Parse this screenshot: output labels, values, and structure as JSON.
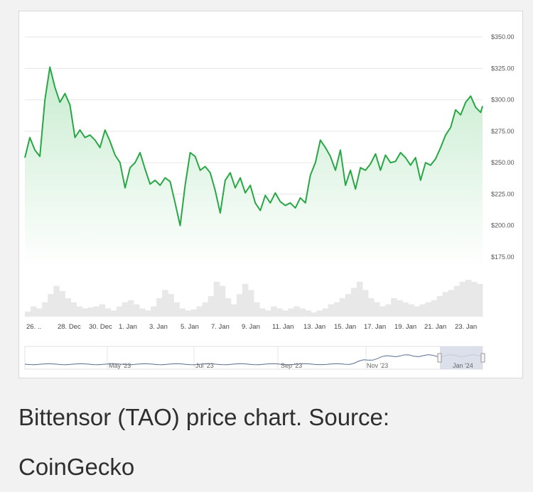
{
  "chart_data": {
    "type": "area",
    "ylim": [
      175,
      350
    ],
    "y_ticks": [
      "$350.00",
      "$325.00",
      "$300.00",
      "$275.00",
      "$250.00",
      "$225.00",
      "$200.00",
      "$175.00"
    ],
    "y_tick_values": [
      350,
      325,
      300,
      275,
      250,
      225,
      200,
      175
    ],
    "x_tick_labels": [
      "26. ..",
      "28. Dec",
      "30. Dec",
      "1. Jan",
      "3. Jan",
      "5. Jan",
      "7. Jan",
      "9. Jan",
      "11. Jan",
      "13. Jan",
      "15. Jan",
      "17. Jan",
      "19. Jan",
      "21. Jan",
      "23. Jan"
    ],
    "series": [
      {
        "x": [
          "2023-12-25 12:00",
          "2023-12-25 20:00",
          "2023-12-26 04:00",
          "2023-12-26 12:00",
          "2023-12-26 20:00",
          "2023-12-27 04:00",
          "2023-12-27 12:00",
          "2023-12-27 20:00",
          "2023-12-28 04:00",
          "2023-12-28 12:00",
          "2023-12-28 20:00",
          "2023-12-29 04:00",
          "2023-12-29 12:00",
          "2023-12-29 20:00",
          "2023-12-30 04:00",
          "2023-12-30 12:00",
          "2023-12-30 20:00",
          "2023-12-31 04:00",
          "2023-12-31 12:00",
          "2023-12-31 20:00",
          "2024-01-01 04:00",
          "2024-01-01 12:00",
          "2024-01-01 20:00",
          "2024-01-02 04:00",
          "2024-01-02 12:00",
          "2024-01-02 20:00",
          "2024-01-03 04:00",
          "2024-01-03 12:00",
          "2024-01-03 20:00",
          "2024-01-04 04:00",
          "2024-01-04 12:00",
          "2024-01-04 20:00",
          "2024-01-05 04:00",
          "2024-01-05 12:00",
          "2024-01-05 20:00",
          "2024-01-06 04:00",
          "2024-01-06 12:00",
          "2024-01-06 20:00",
          "2024-01-07 04:00",
          "2024-01-07 12:00",
          "2024-01-07 20:00",
          "2024-01-08 04:00",
          "2024-01-08 12:00",
          "2024-01-08 20:00",
          "2024-01-09 04:00",
          "2024-01-09 12:00",
          "2024-01-09 20:00",
          "2024-01-10 04:00",
          "2024-01-10 12:00",
          "2024-01-10 20:00",
          "2024-01-11 04:00",
          "2024-01-11 12:00",
          "2024-01-11 20:00",
          "2024-01-12 04:00",
          "2024-01-12 12:00",
          "2024-01-12 20:00",
          "2024-01-13 04:00",
          "2024-01-13 12:00",
          "2024-01-13 20:00",
          "2024-01-14 04:00",
          "2024-01-14 12:00",
          "2024-01-14 20:00",
          "2024-01-15 04:00",
          "2024-01-15 12:00",
          "2024-01-15 20:00",
          "2024-01-16 04:00",
          "2024-01-16 12:00",
          "2024-01-16 20:00",
          "2024-01-17 04:00",
          "2024-01-17 12:00",
          "2024-01-17 20:00",
          "2024-01-18 04:00",
          "2024-01-18 12:00",
          "2024-01-18 20:00",
          "2024-01-19 04:00",
          "2024-01-19 12:00",
          "2024-01-19 20:00",
          "2024-01-20 04:00",
          "2024-01-20 12:00",
          "2024-01-20 20:00",
          "2024-01-21 04:00",
          "2024-01-21 12:00",
          "2024-01-21 20:00",
          "2024-01-22 04:00",
          "2024-01-22 12:00",
          "2024-01-22 20:00",
          "2024-01-23 04:00",
          "2024-01-23 12:00",
          "2024-01-23 20:00",
          "2024-01-24 04:00",
          "2024-01-24 12:00",
          "2024-01-24 20:00",
          "2024-01-24 23:00"
        ],
        "values": [
          254,
          270,
          260,
          255,
          300,
          326,
          310,
          298,
          305,
          296,
          270,
          276,
          270,
          272,
          268,
          262,
          276,
          267,
          256,
          250,
          230,
          246,
          250,
          258,
          245,
          233,
          236,
          232,
          238,
          235,
          218,
          200,
          232,
          258,
          255,
          244,
          247,
          242,
          228,
          210,
          236,
          242,
          230,
          238,
          226,
          232,
          218,
          212,
          224,
          218,
          226,
          219,
          216,
          218,
          214,
          222,
          218,
          240,
          250,
          268,
          262,
          255,
          244,
          260,
          232,
          244,
          229,
          246,
          244,
          249,
          257,
          244,
          256,
          250,
          251,
          258,
          254,
          248,
          254,
          236,
          250,
          248,
          253,
          262,
          272,
          278,
          292,
          288,
          298,
          303,
          294,
          290,
          295
        ]
      }
    ],
    "volume": [
      5,
      10,
      8,
      14,
      22,
      30,
      25,
      18,
      14,
      10,
      8,
      9,
      10,
      12,
      8,
      6,
      10,
      14,
      16,
      12,
      8,
      6,
      10,
      18,
      26,
      22,
      14,
      8,
      6,
      7,
      10,
      14,
      20,
      34,
      30,
      18,
      12,
      22,
      32,
      26,
      14,
      8,
      6,
      10,
      8,
      6,
      8,
      10,
      8,
      6,
      4,
      6,
      8,
      12,
      14,
      18,
      22,
      28,
      34,
      26,
      18,
      14,
      10,
      12,
      18,
      16,
      14,
      12,
      10,
      12,
      14,
      16,
      20,
      24,
      26,
      30,
      34,
      36,
      34,
      32
    ],
    "navigator": {
      "labels": [
        "May '23",
        "Jul '23",
        "Sep '23",
        "Nov '23",
        "Jan '24"
      ]
    },
    "colors": {
      "line": "#28a745",
      "area_top": "#c8ecd0",
      "area_bottom": "#ffffff",
      "volume": "#e8e8e8",
      "grid": "#e6e6e6",
      "navigator_mask": "#d6dbe6"
    }
  },
  "caption": {
    "line1": "Bittensor (TAO) price chart. Source:",
    "line2": "CoinGecko"
  }
}
